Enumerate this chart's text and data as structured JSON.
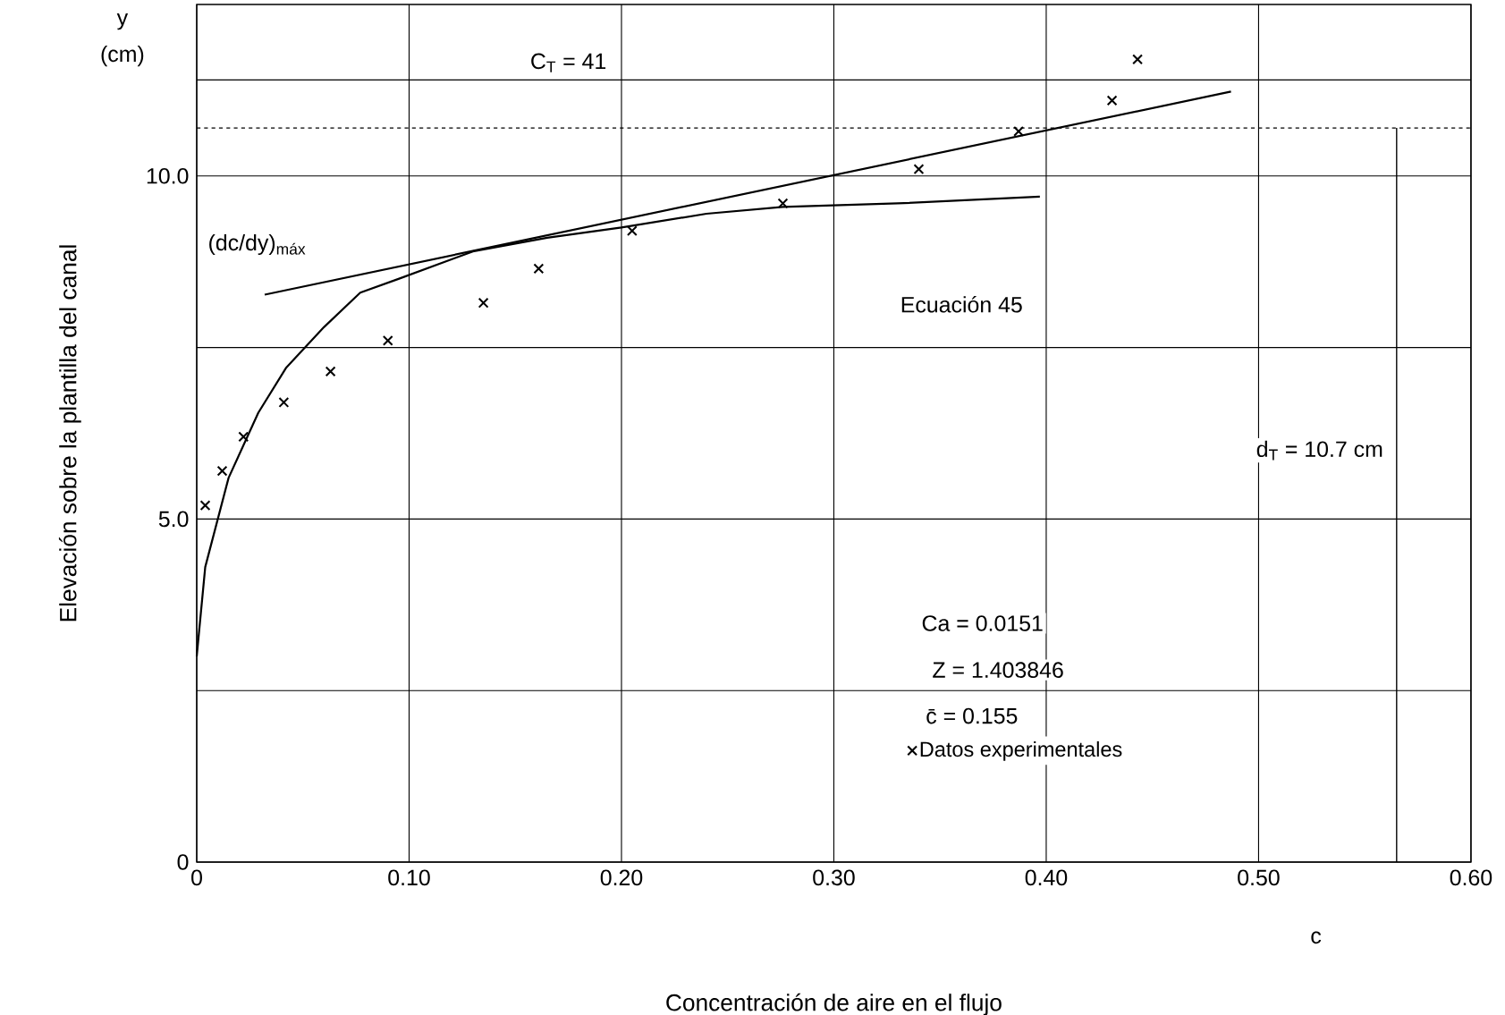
{
  "chart_data": {
    "type": "scatter",
    "xlabel": "Concentración de aire en el flujo",
    "ylabel": "Elevación sobre la plantilla del canal",
    "xlim": [
      0,
      0.6
    ],
    "ylim": [
      0,
      12.5
    ],
    "xticks": [
      0,
      {
        "value": 0.1,
        "label": "0.10"
      },
      {
        "value": 0.2,
        "label": "0.20"
      },
      {
        "value": 0.3,
        "label": "0.30"
      },
      {
        "value": 0.4,
        "label": "0.40"
      },
      {
        "value": 0.5,
        "label": "0.50"
      },
      {
        "value": 0.6,
        "label": "0.60"
      }
    ],
    "yticks": [
      0,
      {
        "value": 2.5,
        "label": null
      },
      {
        "value": 5,
        "label": "5.0"
      },
      {
        "value": 7.5,
        "label": null
      },
      {
        "value": 10,
        "label": "10.0"
      }
    ],
    "grid": true,
    "legend": "bottom right",
    "series": [
      {
        "type": "line",
        "color": "#000000",
        "marker": "none",
        "x": [
          0.0,
          0.004,
          0.015,
          0.029,
          0.042,
          0.06,
          0.077,
          0.095,
          0.13,
          0.165,
          0.2,
          0.24,
          0.276,
          0.33,
          0.397
        ],
        "values": [
          3.0,
          4.3,
          5.6,
          6.55,
          7.2,
          7.8,
          8.3,
          8.5,
          8.9,
          9.1,
          9.25,
          9.45,
          9.55,
          9.6,
          9.7
        ]
      },
      {
        "type": "line",
        "color": "#000000",
        "marker": "none",
        "x": [
          0.032,
          0.487
        ],
        "values": [
          8.27,
          11.23
        ]
      },
      {
        "name": "Datos experimentales",
        "color": "#000000",
        "marker": "cross",
        "x": [
          0.004,
          0.012,
          0.022,
          0.041,
          0.063,
          0.09,
          0.135,
          0.161,
          0.205,
          0.276,
          0.34,
          0.387,
          0.431,
          0.443
        ],
        "values": [
          5.2,
          5.7,
          6.2,
          6.7,
          7.15,
          7.6,
          8.15,
          8.65,
          9.2,
          9.6,
          10.1,
          10.65,
          11.1,
          11.7
        ]
      }
    ],
    "ref_lines": [
      {
        "axis": "y",
        "value": 11.4
      },
      {
        "axis": "x",
        "value": 0.565
      },
      {
        "axis": "y",
        "value": 10.7,
        "line_style": "dashed"
      }
    ],
    "annotations": [
      "y",
      "(cm)",
      "(dc/dy)$_{máx}$",
      "Ecuación 45",
      "Ca = 0.0151",
      "Z = 1.403846",
      "c̄ = 0.155",
      "c",
      "C$_{T}$ = 41",
      "d$_{T}$ = 10.7 cm"
    ]
  }
}
